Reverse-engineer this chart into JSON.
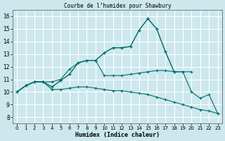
{
  "title": "Courbe de l’humidex pour Shawbury",
  "xlabel": "Humidex (Indice chaleur)",
  "bg_color": "#cce8ec",
  "grid_color": "#ffffff",
  "line_color": "#006e6e",
  "xlim": [
    -0.5,
    23.5
  ],
  "ylim": [
    7.5,
    16.5
  ],
  "xticks": [
    0,
    1,
    2,
    3,
    4,
    5,
    6,
    7,
    8,
    9,
    10,
    11,
    12,
    13,
    14,
    15,
    16,
    17,
    18,
    19,
    20,
    21,
    22,
    23
  ],
  "yticks": [
    8,
    9,
    10,
    11,
    12,
    13,
    14,
    15,
    16
  ],
  "lines": [
    {
      "x": [
        0,
        1,
        2,
        3,
        4,
        5,
        6,
        7,
        8,
        9,
        10,
        11,
        12,
        13,
        14,
        15,
        16,
        17,
        18
      ],
      "y": [
        10.0,
        10.5,
        10.8,
        10.8,
        10.8,
        11.0,
        11.8,
        12.3,
        12.5,
        12.5,
        13.1,
        13.5,
        13.5,
        13.6,
        14.9,
        15.8,
        15.0,
        13.2,
        11.6
      ]
    },
    {
      "x": [
        0,
        1,
        2,
        3,
        4,
        5,
        6,
        7,
        8,
        9,
        10,
        11,
        12,
        13,
        14,
        15,
        16,
        17,
        18,
        19,
        20
      ],
      "y": [
        10.0,
        10.5,
        10.8,
        10.8,
        10.4,
        10.9,
        11.4,
        12.3,
        12.5,
        12.5,
        13.1,
        13.5,
        13.5,
        13.6,
        14.9,
        15.8,
        15.0,
        13.2,
        11.6,
        11.6,
        11.6
      ]
    },
    {
      "x": [
        0,
        1,
        2,
        3,
        4,
        5,
        6,
        7,
        8,
        9,
        10,
        11,
        12,
        13,
        14,
        15,
        16,
        17,
        18,
        19,
        20,
        21,
        22,
        23
      ],
      "y": [
        10.0,
        10.5,
        10.8,
        10.8,
        10.4,
        10.9,
        11.4,
        12.3,
        12.5,
        12.5,
        11.3,
        11.3,
        11.3,
        11.4,
        11.5,
        11.6,
        11.7,
        11.7,
        11.6,
        11.6,
        10.0,
        9.5,
        9.8,
        8.3
      ]
    },
    {
      "x": [
        0,
        1,
        2,
        3,
        4,
        5,
        6,
        7,
        8,
        9,
        10,
        11,
        12,
        13,
        14,
        15,
        16,
        17,
        18,
        19,
        20,
        21,
        22,
        23
      ],
      "y": [
        10.0,
        10.5,
        10.8,
        10.8,
        10.2,
        10.2,
        10.3,
        10.4,
        10.4,
        10.3,
        10.2,
        10.1,
        10.1,
        10.0,
        9.9,
        9.8,
        9.6,
        9.4,
        9.2,
        9.0,
        8.8,
        8.6,
        8.5,
        8.3
      ]
    }
  ]
}
